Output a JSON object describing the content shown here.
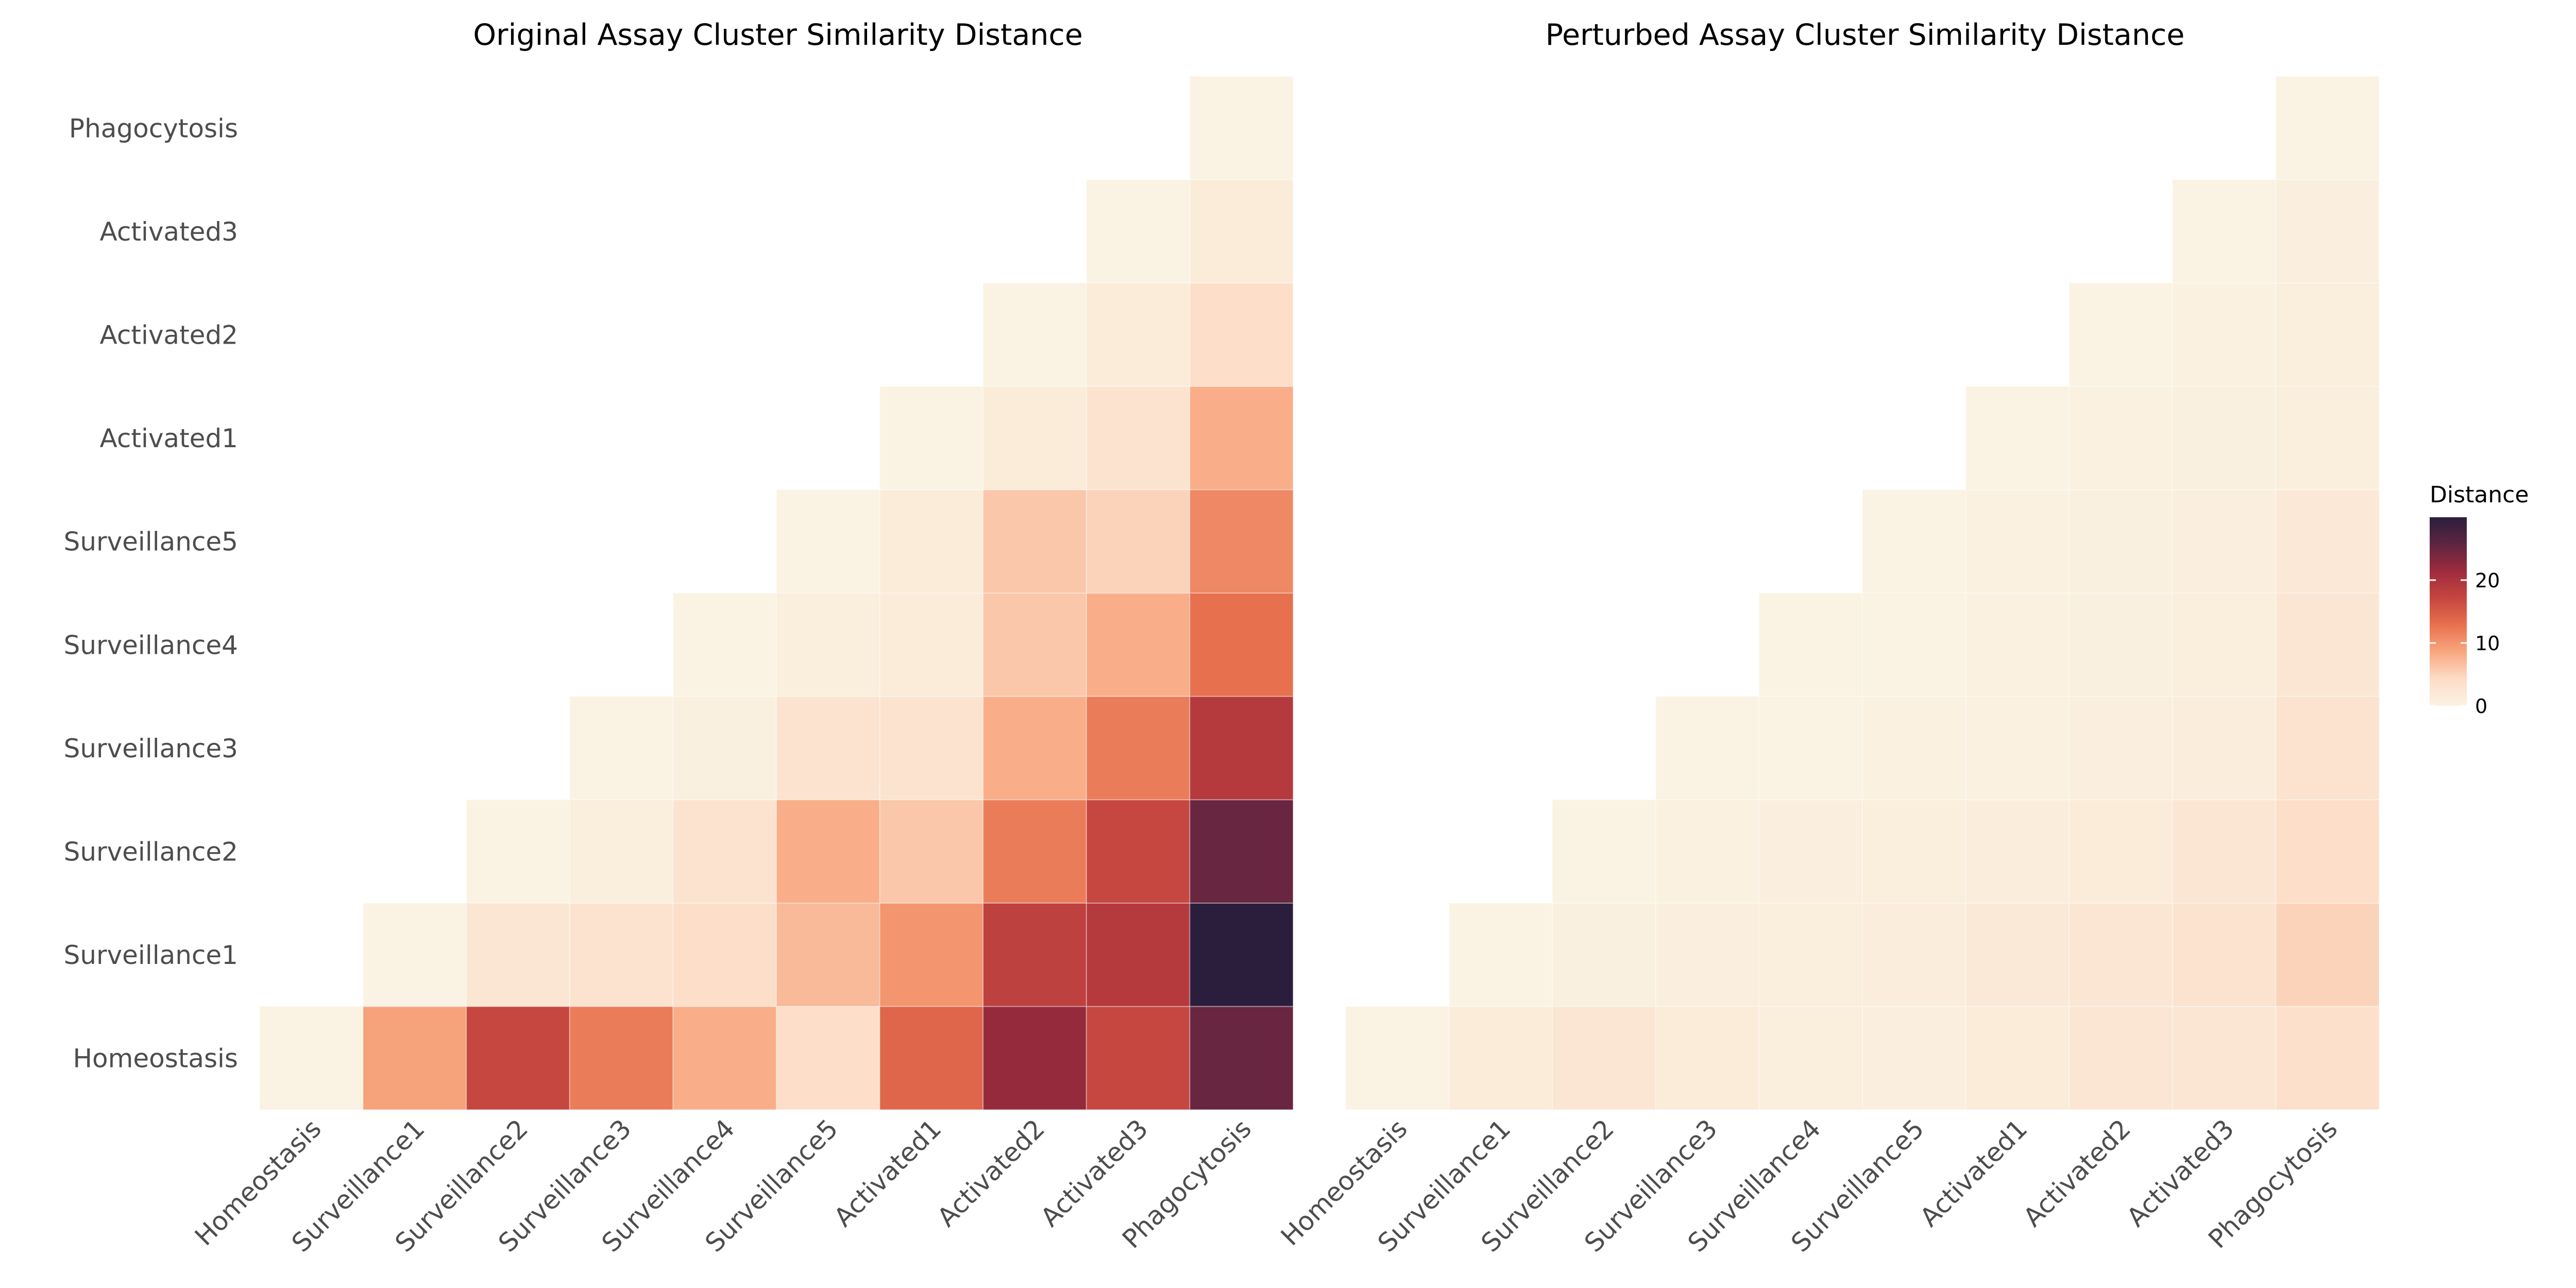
{
  "chart_data": [
    {
      "type": "heatmap",
      "title": "Original Assay Cluster Similarity Distance",
      "x_categories": [
        "Homeostasis",
        "Surveillance1",
        "Surveillance2",
        "Surveillance3",
        "Surveillance4",
        "Surveillance5",
        "Activated1",
        "Activated2",
        "Activated3",
        "Phagocytosis"
      ],
      "y_categories": [
        "Homeostasis",
        "Surveillance1",
        "Surveillance2",
        "Surveillance3",
        "Surveillance4",
        "Surveillance5",
        "Activated1",
        "Activated2",
        "Activated3",
        "Phagocytosis"
      ],
      "triangle": "upper-right",
      "values": [
        [
          0,
          9,
          17,
          12,
          8,
          4,
          14,
          22,
          17,
          25
        ],
        [
          null,
          0,
          2.5,
          3,
          4,
          7,
          10,
          18,
          19,
          30
        ],
        [
          null,
          null,
          0,
          1,
          3,
          8,
          6,
          12,
          17,
          25
        ],
        [
          null,
          null,
          null,
          0,
          0.5,
          3,
          3,
          8,
          12,
          19
        ],
        [
          null,
          null,
          null,
          null,
          0,
          1,
          1.5,
          6,
          8,
          13
        ],
        [
          null,
          null,
          null,
          null,
          null,
          0,
          1.5,
          6,
          5,
          11
        ],
        [
          null,
          null,
          null,
          null,
          null,
          null,
          0,
          1.5,
          3,
          8
        ],
        [
          null,
          null,
          null,
          null,
          null,
          null,
          null,
          0,
          1.5,
          4
        ],
        [
          null,
          null,
          null,
          null,
          null,
          null,
          null,
          null,
          0,
          1.5
        ],
        [
          null,
          null,
          null,
          null,
          null,
          null,
          null,
          null,
          null,
          0
        ]
      ]
    },
    {
      "type": "heatmap",
      "title": "Perturbed Assay Cluster Similarity Distance",
      "x_categories": [
        "Homeostasis",
        "Surveillance1",
        "Surveillance2",
        "Surveillance3",
        "Surveillance4",
        "Surveillance5",
        "Activated1",
        "Activated2",
        "Activated3",
        "Phagocytosis"
      ],
      "y_categories": [
        "Homeostasis",
        "Surveillance1",
        "Surveillance2",
        "Surveillance3",
        "Surveillance4",
        "Surveillance5",
        "Activated1",
        "Activated2",
        "Activated3",
        "Phagocytosis"
      ],
      "triangle": "upper-right",
      "values": [
        [
          0,
          1.5,
          2.5,
          1.5,
          1,
          0.7,
          1.5,
          2.5,
          2.5,
          3.5
        ],
        [
          null,
          0,
          0.5,
          0.7,
          1,
          1.2,
          1.8,
          2.5,
          3,
          5
        ],
        [
          null,
          null,
          0,
          0.3,
          0.7,
          1,
          1.2,
          1.5,
          2.5,
          4
        ],
        [
          null,
          null,
          null,
          0,
          0.2,
          0.3,
          0.4,
          0.7,
          1.2,
          3
        ],
        [
          null,
          null,
          null,
          null,
          0,
          0.2,
          0.3,
          0.6,
          1,
          2.5
        ],
        [
          null,
          null,
          null,
          null,
          null,
          0,
          0.3,
          0.5,
          0.7,
          2
        ],
        [
          null,
          null,
          null,
          null,
          null,
          null,
          0,
          0.3,
          0.5,
          1
        ],
        [
          null,
          null,
          null,
          null,
          null,
          null,
          null,
          0,
          0.3,
          1
        ],
        [
          null,
          null,
          null,
          null,
          null,
          null,
          null,
          null,
          0,
          0.8
        ],
        [
          null,
          null,
          null,
          null,
          null,
          null,
          null,
          null,
          null,
          0
        ]
      ]
    }
  ],
  "legend": {
    "title": "Distance",
    "ticks": [
      0,
      10,
      20
    ],
    "range": [
      0,
      30
    ],
    "colors": [
      "#faf3e3",
      "#fcdcc7",
      "#f8a77f",
      "#e8714f",
      "#c5463f",
      "#9e2b3d",
      "#5e2540",
      "#2b1e3d"
    ]
  }
}
